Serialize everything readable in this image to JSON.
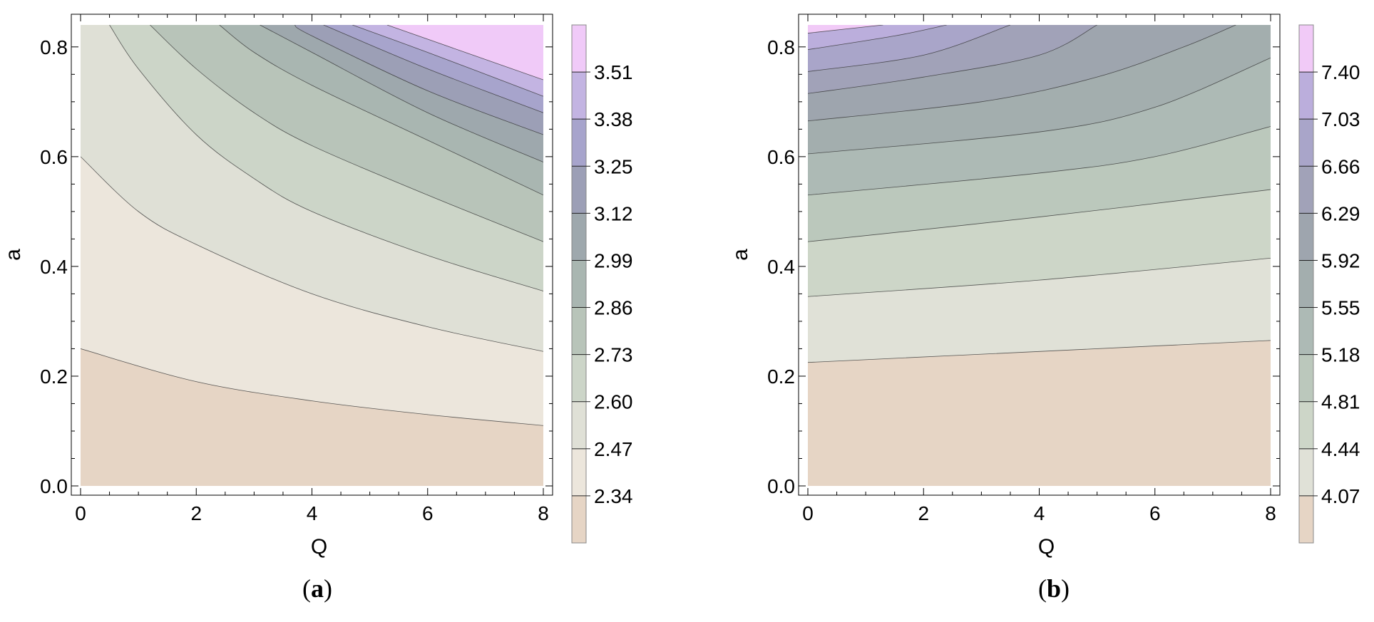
{
  "chart_data": [
    {
      "type": "contour",
      "panel": "a",
      "caption_open": "(",
      "caption_letter": "a",
      "caption_close": ")",
      "xlabel": "Q",
      "ylabel": "a",
      "xlim": [
        0,
        8
      ],
      "ylim": [
        0,
        0.84
      ],
      "xticks": [
        "0",
        "2",
        "4",
        "6",
        "8"
      ],
      "yticks": [
        "0.0",
        "0.2",
        "0.4",
        "0.6",
        "0.8"
      ],
      "legend_ticks": [
        "2.34",
        "2.47",
        "2.60",
        "2.73",
        "2.86",
        "2.99",
        "3.12",
        "3.25",
        "3.38",
        "3.51"
      ],
      "contour_levels": [
        2.34,
        2.47,
        2.6,
        2.73,
        2.86,
        2.99,
        3.12,
        3.25,
        3.38,
        3.51
      ],
      "contour_lines": [
        {
          "level": 2.34,
          "points": [
            [
              0,
              0.25
            ],
            [
              2,
              0.19
            ],
            [
              4,
              0.155
            ],
            [
              6,
              0.13
            ],
            [
              8,
              0.11
            ]
          ]
        },
        {
          "level": 2.47,
          "points": [
            [
              0,
              0.6
            ],
            [
              1,
              0.5
            ],
            [
              2,
              0.44
            ],
            [
              4,
              0.35
            ],
            [
              6,
              0.29
            ],
            [
              8,
              0.245
            ]
          ]
        },
        {
          "level": 2.6,
          "points": [
            [
              0.5,
              0.84
            ],
            [
              1,
              0.76
            ],
            [
              2,
              0.64
            ],
            [
              3,
              0.56
            ],
            [
              4,
              0.5
            ],
            [
              6,
              0.42
            ],
            [
              8,
              0.355
            ]
          ]
        },
        {
          "level": 2.73,
          "points": [
            [
              1.2,
              0.84
            ],
            [
              2,
              0.76
            ],
            [
              3,
              0.68
            ],
            [
              4,
              0.62
            ],
            [
              6,
              0.53
            ],
            [
              8,
              0.445
            ]
          ]
        },
        {
          "level": 2.86,
          "points": [
            [
              2.4,
              0.84
            ],
            [
              3,
              0.79
            ],
            [
              4,
              0.73
            ],
            [
              6,
              0.63
            ],
            [
              8,
              0.53
            ]
          ]
        },
        {
          "level": 2.99,
          "points": [
            [
              3.1,
              0.84
            ],
            [
              4,
              0.79
            ],
            [
              6,
              0.68
            ],
            [
              8,
              0.59
            ]
          ]
        },
        {
          "level": 3.12,
          "points": [
            [
              3.7,
              0.84
            ],
            [
              4,
              0.82
            ],
            [
              6,
              0.72
            ],
            [
              8,
              0.64
            ]
          ]
        },
        {
          "level": 3.25,
          "points": [
            [
              4.2,
              0.84
            ],
            [
              6,
              0.76
            ],
            [
              8,
              0.68
            ]
          ]
        },
        {
          "level": 3.38,
          "points": [
            [
              4.7,
              0.84
            ],
            [
              6,
              0.79
            ],
            [
              8,
              0.71
            ]
          ]
        },
        {
          "level": 3.51,
          "points": [
            [
              5.3,
              0.84
            ],
            [
              8,
              0.74
            ]
          ]
        }
      ],
      "colors": [
        "#e6d5c5",
        "#ece6dc",
        "#dfe0d6",
        "#ccd5c8",
        "#b8c4b9",
        "#a9b6b1",
        "#9ea8ad",
        "#9c9fb6",
        "#a7a4cc",
        "#c3b4e2",
        "#f0caf8"
      ]
    },
    {
      "type": "contour",
      "panel": "b",
      "caption_open": "(",
      "caption_letter": "b",
      "caption_close": ")",
      "xlabel": "Q",
      "ylabel": "a",
      "xlim": [
        0,
        8
      ],
      "ylim": [
        0,
        0.84
      ],
      "xticks": [
        "0",
        "2",
        "4",
        "6",
        "8"
      ],
      "yticks": [
        "0.0",
        "0.2",
        "0.4",
        "0.6",
        "0.8"
      ],
      "legend_ticks": [
        "4.07",
        "4.44",
        "4.81",
        "5.18",
        "5.55",
        "5.92",
        "6.29",
        "6.66",
        "7.03",
        "7.40"
      ],
      "contour_levels": [
        4.07,
        4.44,
        4.81,
        5.18,
        5.55,
        5.92,
        6.29,
        6.66,
        7.03,
        7.4
      ],
      "contour_lines": [
        {
          "level": 4.07,
          "points": [
            [
              0,
              0.225
            ],
            [
              4,
              0.245
            ],
            [
              8,
              0.265
            ]
          ]
        },
        {
          "level": 4.44,
          "points": [
            [
              0,
              0.345
            ],
            [
              4,
              0.375
            ],
            [
              8,
              0.415
            ]
          ]
        },
        {
          "level": 4.81,
          "points": [
            [
              0,
              0.445
            ],
            [
              4,
              0.49
            ],
            [
              8,
              0.54
            ]
          ]
        },
        {
          "level": 5.18,
          "points": [
            [
              0,
              0.53
            ],
            [
              4,
              0.57
            ],
            [
              6,
              0.6
            ],
            [
              8,
              0.655
            ]
          ]
        },
        {
          "level": 5.55,
          "points": [
            [
              0,
              0.605
            ],
            [
              4,
              0.645
            ],
            [
              6,
              0.69
            ],
            [
              8,
              0.78
            ]
          ]
        },
        {
          "level": 5.92,
          "points": [
            [
              0,
              0.665
            ],
            [
              3,
              0.7
            ],
            [
              5,
              0.745
            ],
            [
              6.5,
              0.8
            ],
            [
              7.4,
              0.84
            ]
          ]
        },
        {
          "level": 6.29,
          "points": [
            [
              0,
              0.715
            ],
            [
              2,
              0.745
            ],
            [
              4,
              0.785
            ],
            [
              5,
              0.84
            ]
          ]
        },
        {
          "level": 6.66,
          "points": [
            [
              0,
              0.755
            ],
            [
              2,
              0.785
            ],
            [
              3.5,
              0.84
            ]
          ]
        },
        {
          "level": 7.03,
          "points": [
            [
              0,
              0.795
            ],
            [
              1.5,
              0.82
            ],
            [
              2.4,
              0.84
            ]
          ]
        },
        {
          "level": 7.4,
          "points": [
            [
              0,
              0.825
            ],
            [
              1.3,
              0.84
            ]
          ]
        }
      ],
      "colors": [
        "#e6d5c5",
        "#e0e1d7",
        "#cdd6c8",
        "#bbc8bc",
        "#adbab5",
        "#a3aeae",
        "#9ea5ae",
        "#a1a2b8",
        "#a9a5c9",
        "#bbaedc",
        "#f1caf7"
      ]
    }
  ]
}
